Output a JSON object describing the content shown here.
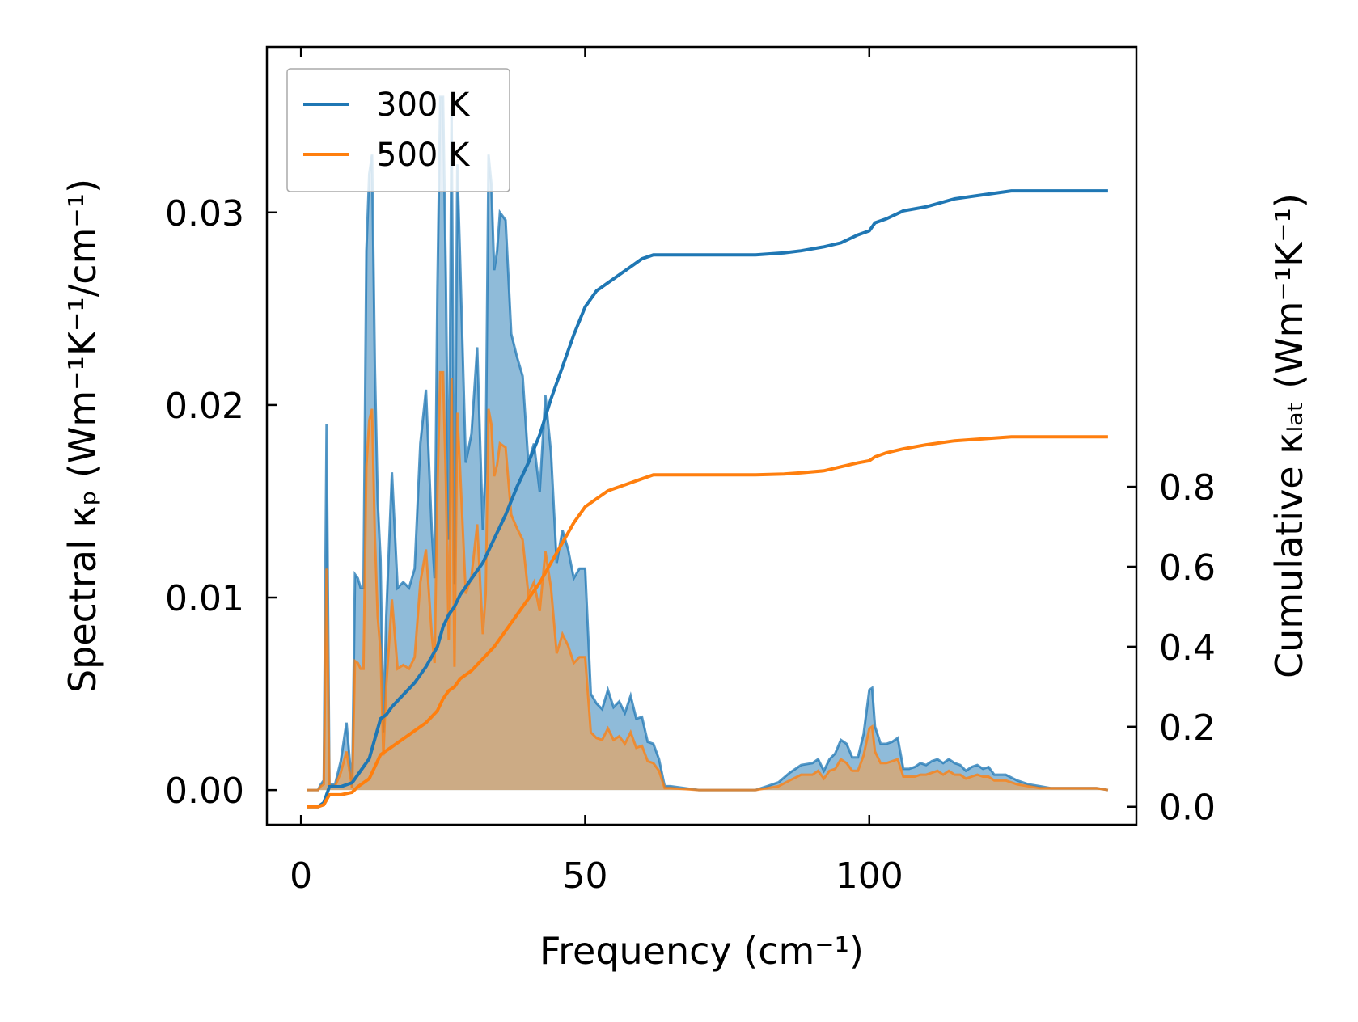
{
  "chart_data": {
    "type": "area",
    "xlabel": "Frequency (cm⁻¹)",
    "ylabel": "Spectral κₚ (Wm⁻¹K⁻¹/cm⁻¹)",
    "y2label": "Cumulative κₗₐₜ (Wm⁻¹K⁻¹)",
    "xlim": [
      -6,
      147
    ],
    "ylim": [
      -0.0018,
      0.0386
    ],
    "y2lim": [
      -0.045,
      1.9
    ],
    "xticks": [
      0,
      50,
      100
    ],
    "yticks": [
      0.0,
      0.01,
      0.02,
      0.03
    ],
    "y2ticks": [
      0.0,
      0.2,
      0.4,
      0.6,
      0.8
    ],
    "legend": {
      "placement": "upper-left",
      "entries": [
        "300 K",
        "500 K"
      ]
    },
    "grid": false,
    "colors": {
      "300 K": "#1f77b4",
      "500 K": "#ff7f0e",
      "fill300": "#1f77b4",
      "fill500": "#ff9f40"
    },
    "series": [
      {
        "name": "300 K",
        "kind": "spectral",
        "x": [
          1,
          2,
          3,
          3.5,
          4,
          4.5,
          5,
          5.5,
          6,
          7,
          8,
          9,
          9.5,
          10,
          10.5,
          11,
          11.5,
          12,
          12.5,
          13,
          13.5,
          14,
          14.5,
          15,
          16,
          17,
          18,
          19,
          20,
          21,
          22,
          23,
          23.5,
          24,
          24.5,
          25,
          25.5,
          26,
          26.5,
          27,
          27.5,
          28,
          29,
          30,
          31,
          32,
          32.5,
          33,
          33.5,
          34,
          34.5,
          35,
          36,
          37,
          38,
          39,
          40,
          41,
          42,
          43,
          44,
          45,
          46,
          47,
          48,
          49,
          50,
          51,
          52,
          53,
          54,
          55,
          56,
          57,
          58,
          59,
          60,
          61,
          62,
          63,
          64,
          65,
          70,
          75,
          80,
          82,
          84,
          86,
          88,
          90,
          91,
          92,
          93,
          94,
          95,
          96,
          97,
          98,
          99,
          100,
          100.5,
          101,
          102,
          103,
          104,
          105,
          106,
          107,
          108,
          109,
          110,
          111,
          112,
          113,
          114,
          115,
          116,
          117,
          118,
          119,
          120,
          121,
          122,
          124,
          126,
          128,
          130,
          132,
          134,
          136,
          138,
          140,
          142
        ],
        "y": [
          0,
          0,
          0,
          0.0003,
          0.0005,
          0.019,
          0.0003,
          0.0003,
          0.0003,
          0.0015,
          0.0035,
          0.0001,
          0.0112,
          0.011,
          0.0105,
          0.0105,
          0.028,
          0.032,
          0.033,
          0.022,
          0.015,
          0.012,
          0.003,
          0.009,
          0.0165,
          0.0105,
          0.0108,
          0.0105,
          0.0115,
          0.018,
          0.0208,
          0.0135,
          0.011,
          0.026,
          0.036,
          0.036,
          0.0265,
          0.013,
          0.0355,
          0.0107,
          0.0325,
          0.0275,
          0.017,
          0.0185,
          0.023,
          0.0135,
          0.017,
          0.033,
          0.0315,
          0.027,
          0.028,
          0.03,
          0.0296,
          0.0237,
          0.0225,
          0.0215,
          0.017,
          0.018,
          0.0155,
          0.0205,
          0.0175,
          0.0118,
          0.0135,
          0.0125,
          0.011,
          0.0115,
          0.0115,
          0.005,
          0.0045,
          0.0042,
          0.0052,
          0.0043,
          0.0046,
          0.004,
          0.0049,
          0.0037,
          0.0038,
          0.0025,
          0.0024,
          0.0016,
          0.0002,
          0.0002,
          0,
          0,
          0,
          0.0002,
          0.0004,
          0.0009,
          0.0013,
          0.0014,
          0.0016,
          0.001,
          0.0016,
          0.0019,
          0.0026,
          0.0024,
          0.0017,
          0.0017,
          0.0029,
          0.0052,
          0.0053,
          0.0033,
          0.0024,
          0.0024,
          0.0025,
          0.0027,
          0.0011,
          0.0011,
          0.0012,
          0.0014,
          0.0013,
          0.0015,
          0.0016,
          0.0014,
          0.0016,
          0.0014,
          0.0013,
          0.001,
          0.0012,
          0.0013,
          0.0011,
          0.0012,
          0.0008,
          0.0008,
          0.0005,
          0.0003,
          0.0002,
          0.0001,
          0.0001,
          0.0001,
          0.0001,
          0.0001,
          0
        ]
      },
      {
        "name": "500 K",
        "kind": "spectral",
        "x": [
          1,
          2,
          3,
          3.5,
          4,
          4.5,
          5,
          5.5,
          6,
          7,
          8,
          9,
          9.5,
          10,
          10.5,
          11,
          11.5,
          12,
          12.5,
          13,
          13.5,
          14,
          14.5,
          15,
          16,
          17,
          18,
          19,
          20,
          21,
          22,
          23,
          23.5,
          24,
          24.5,
          25,
          25.5,
          26,
          26.5,
          27,
          27.5,
          28,
          29,
          30,
          31,
          32,
          32.5,
          33,
          33.5,
          34,
          34.5,
          35,
          36,
          37,
          38,
          39,
          40,
          41,
          42,
          43,
          44,
          45,
          46,
          47,
          48,
          49,
          50,
          51,
          52,
          53,
          54,
          55,
          56,
          57,
          58,
          59,
          60,
          61,
          62,
          63,
          64,
          65,
          70,
          75,
          80,
          82,
          84,
          86,
          88,
          90,
          91,
          92,
          93,
          94,
          95,
          96,
          97,
          98,
          99,
          100,
          100.5,
          101,
          102,
          103,
          104,
          105,
          106,
          107,
          108,
          109,
          110,
          111,
          112,
          113,
          114,
          115,
          116,
          117,
          118,
          119,
          120,
          121,
          122,
          124,
          126,
          128,
          130,
          132,
          134,
          136,
          138,
          140,
          142
        ],
        "y": [
          0,
          0,
          0,
          0.0002,
          0.0003,
          0.0115,
          0.0002,
          0.0002,
          0.0002,
          0.0009,
          0.002,
          0.0001,
          0.0067,
          0.0066,
          0.0063,
          0.0063,
          0.0168,
          0.0192,
          0.0198,
          0.0132,
          0.009,
          0.0072,
          0.0018,
          0.0054,
          0.0099,
          0.0063,
          0.0065,
          0.0063,
          0.0069,
          0.0108,
          0.0125,
          0.0081,
          0.0066,
          0.0156,
          0.0217,
          0.0217,
          0.016,
          0.0078,
          0.0214,
          0.0064,
          0.0196,
          0.0166,
          0.0102,
          0.0111,
          0.0138,
          0.0081,
          0.0102,
          0.0198,
          0.019,
          0.0163,
          0.0169,
          0.018,
          0.0178,
          0.0143,
          0.0136,
          0.013,
          0.0102,
          0.0108,
          0.0093,
          0.0124,
          0.0105,
          0.0071,
          0.0081,
          0.0075,
          0.0066,
          0.0069,
          0.0069,
          0.003,
          0.0027,
          0.0026,
          0.0032,
          0.0026,
          0.0028,
          0.0024,
          0.003,
          0.0022,
          0.0023,
          0.0015,
          0.0014,
          0.001,
          0.0001,
          0.0001,
          0,
          0,
          0,
          0.0001,
          0.0002,
          0.0005,
          0.0008,
          0.0008,
          0.001,
          0.0006,
          0.001,
          0.0011,
          0.0016,
          0.0014,
          0.001,
          0.001,
          0.0018,
          0.0032,
          0.0033,
          0.002,
          0.0014,
          0.0014,
          0.0015,
          0.0016,
          0.0007,
          0.0007,
          0.0007,
          0.0008,
          0.0008,
          0.0009,
          0.001,
          0.0008,
          0.001,
          0.0008,
          0.0008,
          0.0006,
          0.0007,
          0.0008,
          0.0007,
          0.0007,
          0.0005,
          0.0005,
          0.0003,
          0.0002,
          0.0001,
          0.0001,
          0.0001,
          0.0001,
          0.0001,
          0.0001,
          0
        ]
      },
      {
        "name": "300 K",
        "kind": "cumulative",
        "x": [
          1,
          3,
          4,
          5,
          6,
          7,
          8,
          9,
          10,
          11,
          12,
          13,
          14,
          15,
          16,
          18,
          20,
          22,
          24,
          25,
          26,
          27,
          28,
          30,
          32,
          34,
          36,
          38,
          40,
          42,
          44,
          46,
          48,
          50,
          52,
          54,
          56,
          58,
          60,
          62,
          65,
          70,
          75,
          80,
          85,
          88,
          92,
          95,
          98,
          100,
          101,
          103,
          106,
          110,
          115,
          120,
          125,
          130,
          135,
          142
        ],
        "y": [
          0,
          0,
          0.01,
          0.05,
          0.05,
          0.05,
          0.055,
          0.06,
          0.08,
          0.1,
          0.12,
          0.17,
          0.22,
          0.23,
          0.25,
          0.28,
          0.31,
          0.35,
          0.4,
          0.45,
          0.48,
          0.5,
          0.53,
          0.57,
          0.61,
          0.67,
          0.73,
          0.8,
          0.86,
          0.93,
          1.02,
          1.1,
          1.18,
          1.25,
          1.29,
          1.31,
          1.33,
          1.35,
          1.37,
          1.38,
          1.38,
          1.38,
          1.38,
          1.38,
          1.385,
          1.39,
          1.4,
          1.41,
          1.43,
          1.44,
          1.46,
          1.47,
          1.49,
          1.5,
          1.52,
          1.53,
          1.54,
          1.54,
          1.54,
          1.54
        ]
      },
      {
        "name": "500 K",
        "kind": "cumulative",
        "x": [
          1,
          3,
          4,
          5,
          6,
          7,
          8,
          9,
          10,
          11,
          12,
          13,
          14,
          15,
          16,
          18,
          20,
          22,
          24,
          25,
          26,
          27,
          28,
          30,
          32,
          34,
          36,
          38,
          40,
          42,
          44,
          46,
          48,
          50,
          52,
          54,
          56,
          58,
          60,
          62,
          65,
          70,
          75,
          80,
          85,
          88,
          92,
          95,
          98,
          100,
          101,
          103,
          106,
          110,
          115,
          120,
          125,
          130,
          135,
          142
        ],
        "y": [
          0,
          0,
          0.005,
          0.03,
          0.03,
          0.03,
          0.033,
          0.036,
          0.05,
          0.06,
          0.07,
          0.1,
          0.13,
          0.14,
          0.15,
          0.17,
          0.19,
          0.21,
          0.24,
          0.27,
          0.29,
          0.3,
          0.32,
          0.34,
          0.37,
          0.4,
          0.44,
          0.48,
          0.52,
          0.56,
          0.61,
          0.66,
          0.71,
          0.75,
          0.77,
          0.79,
          0.8,
          0.81,
          0.82,
          0.83,
          0.83,
          0.83,
          0.83,
          0.83,
          0.832,
          0.835,
          0.84,
          0.85,
          0.86,
          0.865,
          0.875,
          0.885,
          0.895,
          0.905,
          0.915,
          0.92,
          0.925,
          0.925,
          0.925,
          0.925
        ]
      }
    ]
  }
}
